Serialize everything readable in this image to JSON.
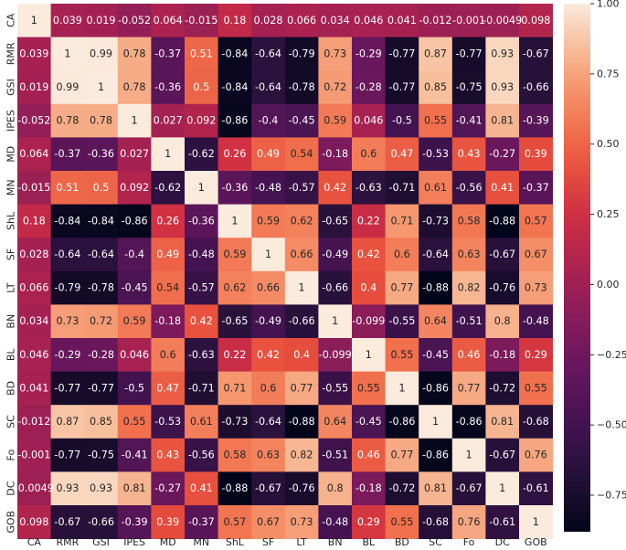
{
  "chart_data": {
    "type": "heatmap",
    "title": "",
    "xlabel": "",
    "ylabel": "",
    "labels": [
      "CA",
      "RMR",
      "GSI",
      "IPES",
      "MD",
      "MN",
      "ShL",
      "SF",
      "LT",
      "BN",
      "BL",
      "BD",
      "SC",
      "Fo",
      "DC",
      "GOB"
    ],
    "values": [
      [
        1,
        0.039,
        0.019,
        -0.052,
        0.064,
        -0.015,
        0.18,
        0.028,
        0.066,
        0.034,
        0.046,
        0.041,
        -0.012,
        -0.001,
        -0.0049,
        0.098
      ],
      [
        0.039,
        1,
        0.99,
        0.78,
        -0.37,
        0.51,
        -0.84,
        -0.64,
        -0.79,
        0.73,
        -0.29,
        -0.77,
        0.87,
        -0.77,
        0.93,
        -0.67
      ],
      [
        0.019,
        0.99,
        1,
        0.78,
        -0.36,
        0.5,
        -0.84,
        -0.64,
        -0.78,
        0.72,
        -0.28,
        -0.77,
        0.85,
        -0.75,
        0.93,
        -0.66
      ],
      [
        -0.052,
        0.78,
        0.78,
        1,
        0.027,
        0.092,
        -0.86,
        -0.4,
        -0.45,
        0.59,
        0.046,
        -0.5,
        0.55,
        -0.41,
        0.81,
        -0.39
      ],
      [
        0.064,
        -0.37,
        -0.36,
        0.027,
        1,
        -0.62,
        0.26,
        0.49,
        0.54,
        -0.18,
        0.6,
        0.47,
        -0.53,
        0.43,
        -0.27,
        0.39
      ],
      [
        -0.015,
        0.51,
        0.5,
        0.092,
        -0.62,
        1,
        -0.36,
        -0.48,
        -0.57,
        0.42,
        -0.63,
        -0.71,
        0.61,
        -0.56,
        0.41,
        -0.37
      ],
      [
        0.18,
        -0.84,
        -0.84,
        -0.86,
        0.26,
        -0.36,
        1,
        0.59,
        0.62,
        -0.65,
        0.22,
        0.71,
        -0.73,
        0.58,
        -0.88,
        0.57
      ],
      [
        0.028,
        -0.64,
        -0.64,
        -0.4,
        0.49,
        -0.48,
        0.59,
        1,
        0.66,
        -0.49,
        0.42,
        0.6,
        -0.64,
        0.63,
        -0.67,
        0.67
      ],
      [
        0.066,
        -0.79,
        -0.78,
        -0.45,
        0.54,
        -0.57,
        0.62,
        0.66,
        1,
        -0.66,
        0.4,
        0.77,
        -0.88,
        0.82,
        -0.76,
        0.73
      ],
      [
        0.034,
        0.73,
        0.72,
        0.59,
        -0.18,
        0.42,
        -0.65,
        -0.49,
        -0.66,
        1,
        -0.099,
        -0.55,
        0.64,
        -0.51,
        0.8,
        -0.48
      ],
      [
        0.046,
        -0.29,
        -0.28,
        0.046,
        0.6,
        -0.63,
        0.22,
        0.42,
        0.4,
        -0.099,
        1,
        0.55,
        -0.45,
        0.46,
        -0.18,
        0.29
      ],
      [
        0.041,
        -0.77,
        -0.77,
        -0.5,
        0.47,
        -0.71,
        0.71,
        0.6,
        0.77,
        -0.55,
        0.55,
        1,
        -0.86,
        0.77,
        -0.72,
        0.55
      ],
      [
        -0.012,
        0.87,
        0.85,
        0.55,
        -0.53,
        0.61,
        -0.73,
        -0.64,
        -0.88,
        0.64,
        -0.45,
        -0.86,
        1,
        -0.86,
        0.81,
        -0.68
      ],
      [
        -0.001,
        -0.77,
        -0.75,
        -0.41,
        0.43,
        -0.56,
        0.58,
        0.63,
        0.82,
        -0.51,
        0.46,
        0.77,
        -0.86,
        1,
        -0.67,
        0.76
      ],
      [
        -0.0049,
        0.93,
        0.93,
        0.81,
        -0.27,
        0.41,
        -0.88,
        -0.67,
        -0.76,
        0.8,
        -0.18,
        -0.72,
        0.81,
        -0.67,
        1,
        -0.61
      ],
      [
        0.098,
        -0.67,
        -0.66,
        -0.39,
        0.39,
        -0.37,
        0.57,
        0.67,
        0.73,
        -0.48,
        0.29,
        0.55,
        -0.68,
        0.76,
        -0.61,
        1
      ]
    ],
    "colorbar": {
      "range": [
        -0.88,
        1
      ],
      "ticks": [
        1,
        0.75,
        0.5,
        0.25,
        0,
        -0.25,
        -0.5,
        -0.75
      ],
      "tick_labels": [
        "1.00",
        "0.75",
        "0.50",
        "0.25",
        "0.00",
        "−0.25",
        "−0.50",
        "−0.75"
      ],
      "colormap": "rocket",
      "placement": "right"
    },
    "grid": false,
    "legend": "none"
  }
}
